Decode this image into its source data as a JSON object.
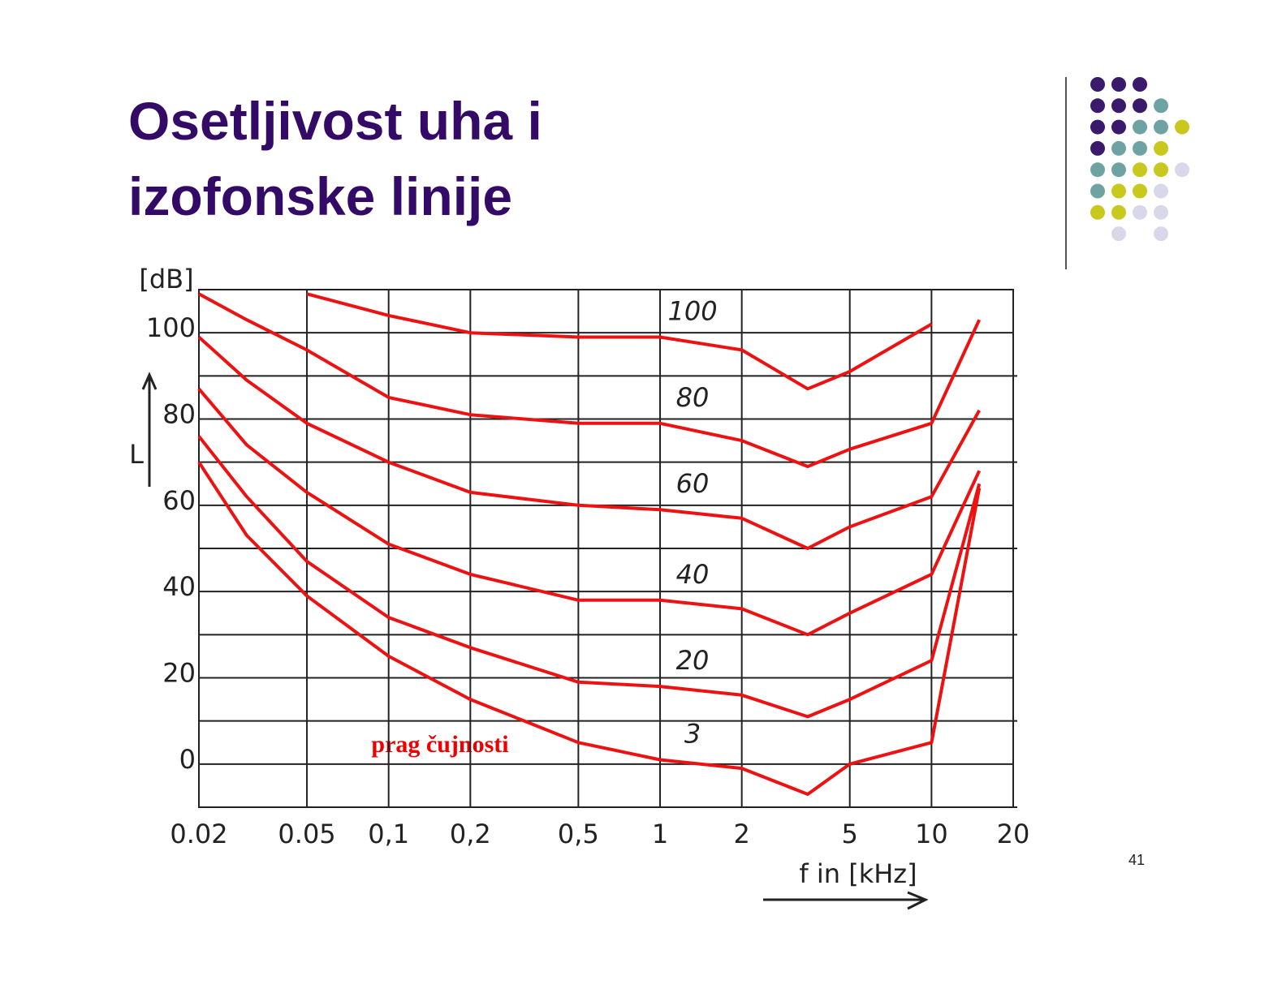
{
  "slide": {
    "title_lines": [
      "Osetljivost uha i",
      "izofonske linije"
    ],
    "page_number": "41"
  },
  "chart_data": {
    "type": "line",
    "y_label": "[dB]",
    "y_symbol": "L",
    "x_label": "f in [kHz]",
    "annotation": "prag čujnosti",
    "x_scale": "log",
    "grid": true,
    "xlim": [
      0.02,
      20
    ],
    "ylim": [
      -10,
      110
    ],
    "xticks": [
      {
        "value": 0.02,
        "label": "0.02"
      },
      {
        "value": 0.05,
        "label": "0.05"
      },
      {
        "value": 0.1,
        "label": "0,1"
      },
      {
        "value": 0.2,
        "label": "0,2"
      },
      {
        "value": 0.5,
        "label": "0,5"
      },
      1,
      2,
      5,
      10,
      20
    ],
    "yticks": [
      0,
      20,
      40,
      60,
      80,
      100
    ],
    "y_minor_gridlines": [
      -10,
      10,
      30,
      50,
      70,
      90
    ],
    "x": [
      0.02,
      0.03,
      0.05,
      0.1,
      0.2,
      0.5,
      1,
      2,
      3.5,
      5,
      10,
      15
    ],
    "series": [
      {
        "name": "100",
        "color": "#ee1111",
        "values": [
          null,
          null,
          109,
          104,
          100,
          99,
          99,
          96,
          87,
          91,
          102,
          null
        ]
      },
      {
        "name": "80",
        "color": "#ee1111",
        "values": [
          109,
          103,
          96,
          85,
          81,
          79,
          79,
          75,
          69,
          73,
          79,
          103
        ]
      },
      {
        "name": "60",
        "color": "#ee1111",
        "values": [
          99,
          89,
          79,
          70,
          63,
          60,
          59,
          57,
          50,
          55,
          62,
          82
        ]
      },
      {
        "name": "40",
        "color": "#ee1111",
        "values": [
          87,
          74,
          63,
          51,
          44,
          38,
          38,
          36,
          30,
          35,
          44,
          68
        ]
      },
      {
        "name": "20",
        "color": "#ee1111",
        "values": [
          76,
          62,
          47,
          34,
          27,
          19,
          18,
          16,
          11,
          15,
          24,
          65
        ]
      },
      {
        "name": "3",
        "color": "#ee1111",
        "values": [
          70,
          53,
          39,
          25,
          15,
          5,
          1,
          -1,
          -7,
          0,
          5,
          64
        ]
      }
    ]
  }
}
